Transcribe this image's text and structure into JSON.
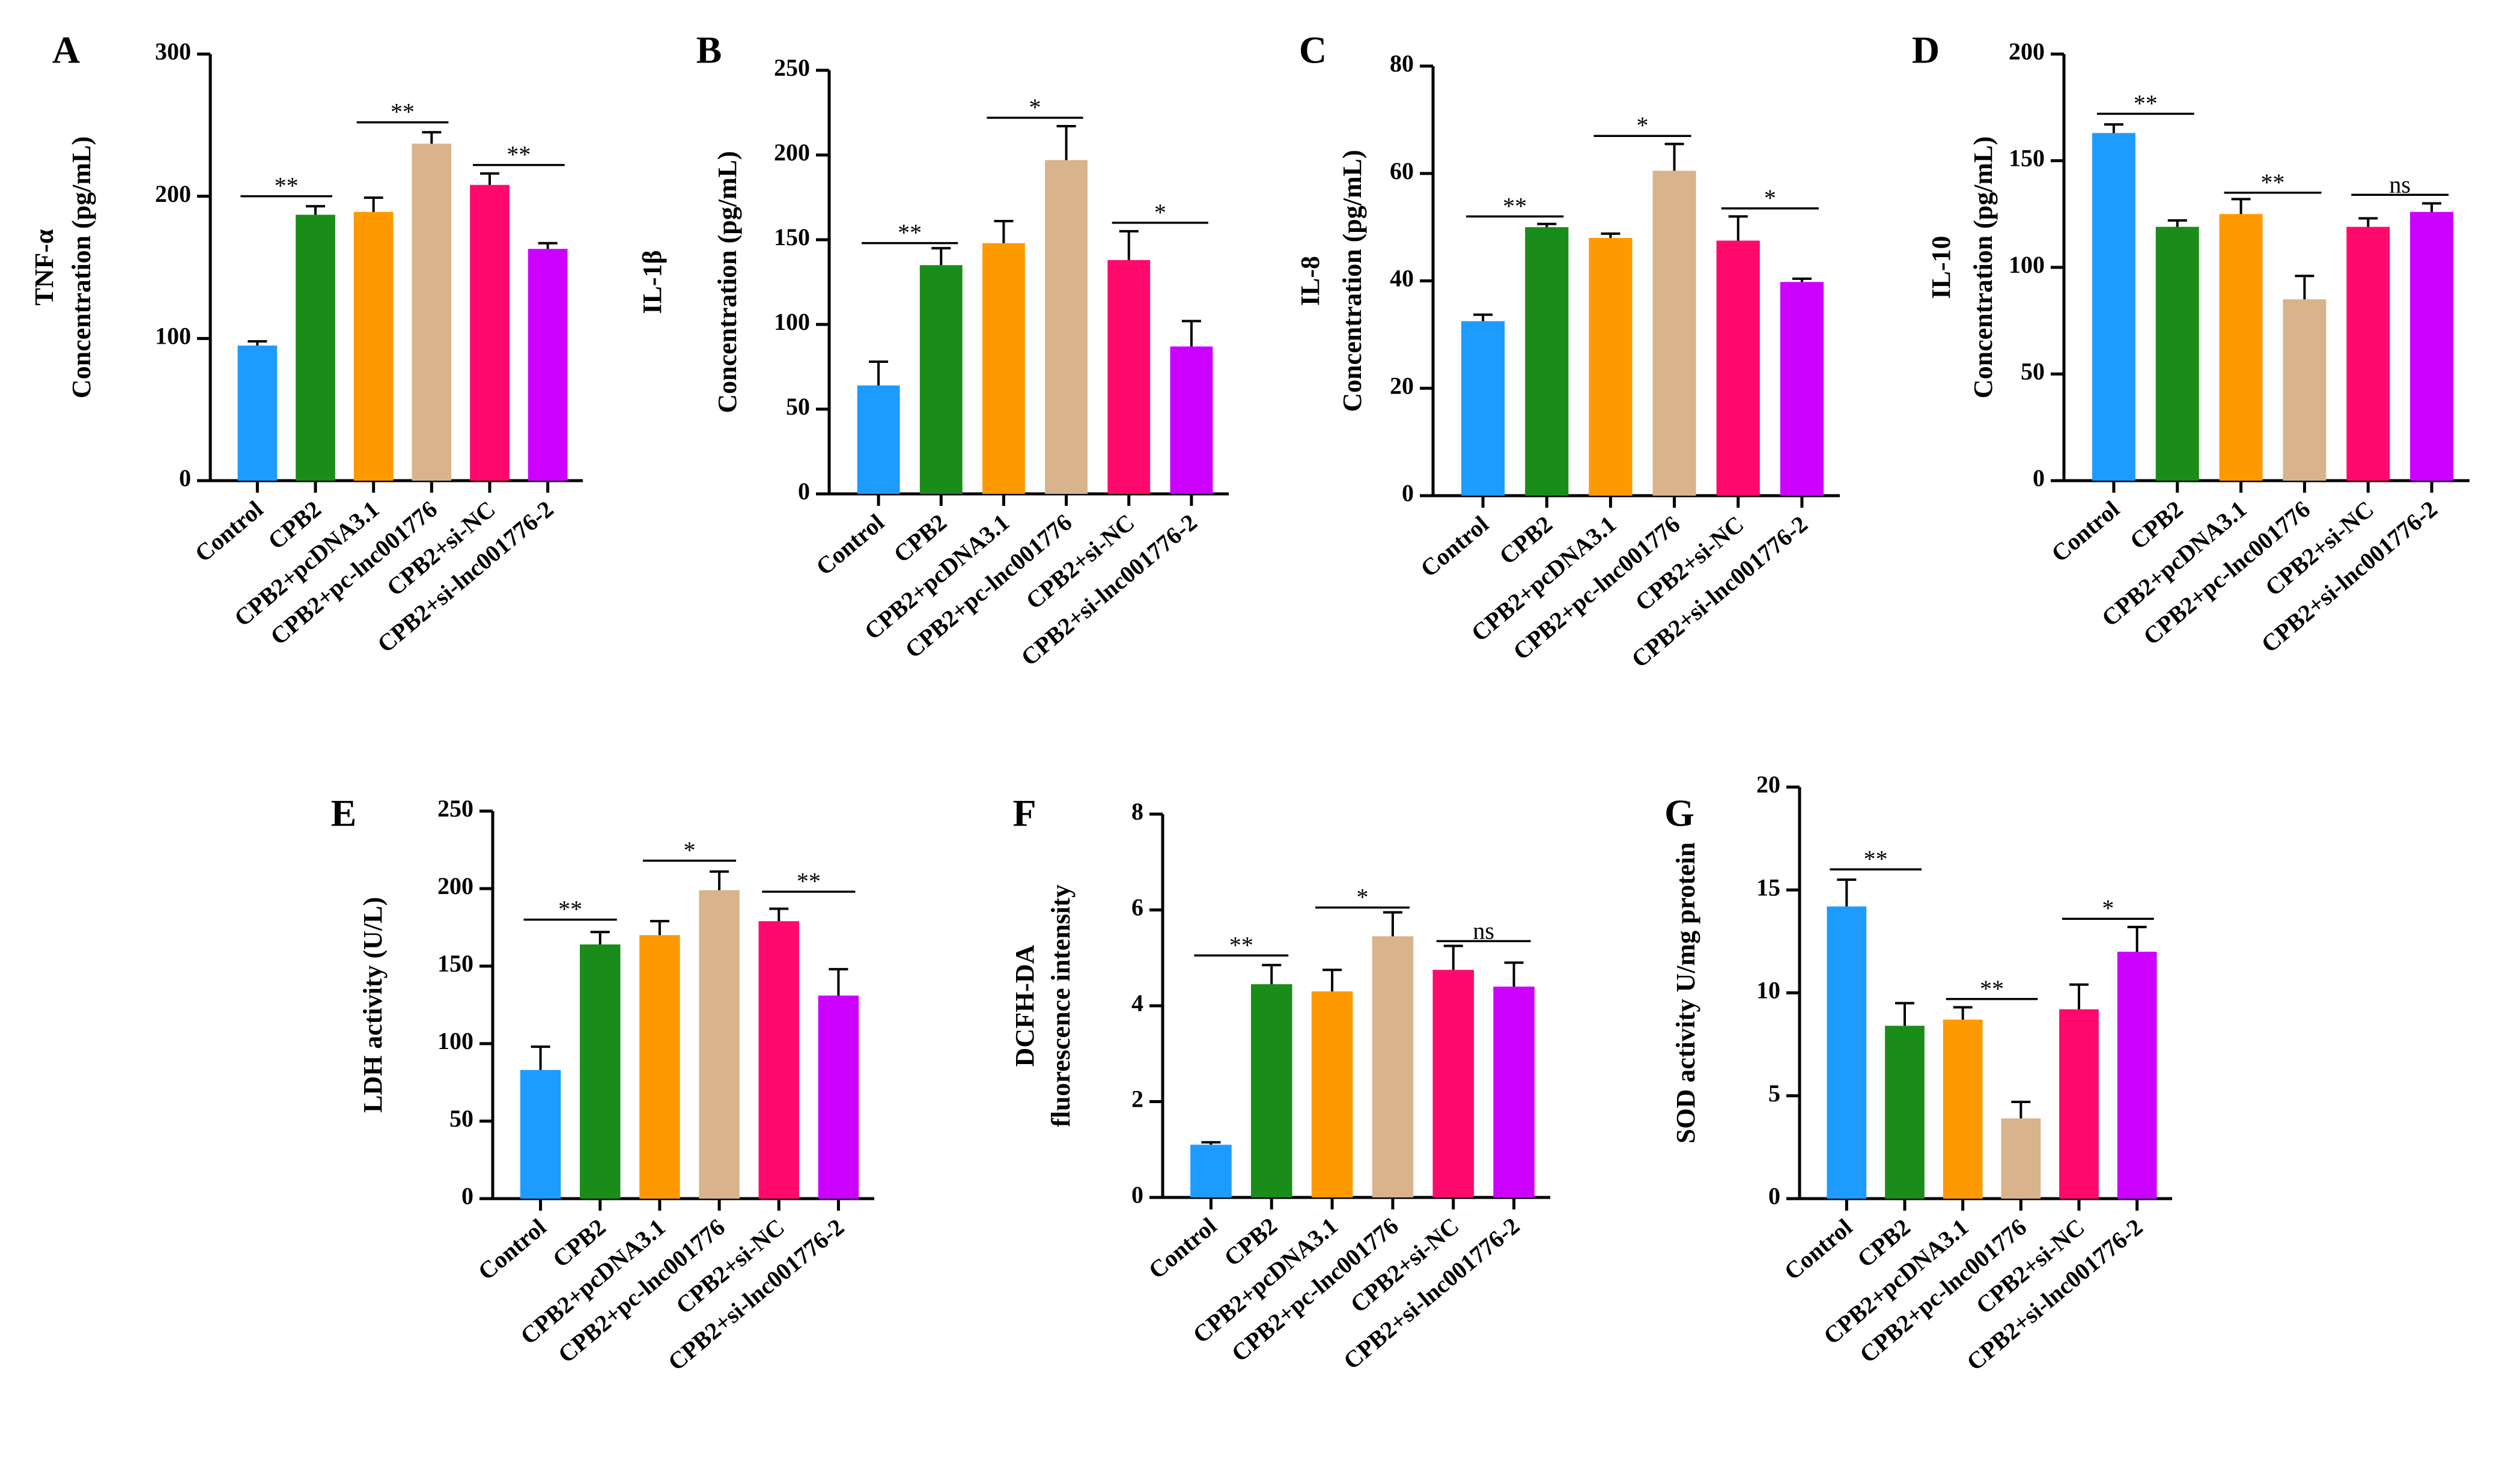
{
  "colors": [
    "#1e9bff",
    "#1a8c1a",
    "#ff9900",
    "#d9b38c",
    "#ff0a6c",
    "#cc00ff"
  ],
  "chart_data": [
    {
      "type": "bar",
      "panel": "A",
      "categories": [
        "Control",
        "CPB2",
        "CPB2+pcDNA3.1",
        "CPB2+pc-lnc001776",
        "CPB2+si-NC",
        "CPB2+si-lnc001776-2"
      ],
      "values": [
        95,
        187,
        189,
        237,
        208,
        163
      ],
      "errors": [
        3,
        6,
        10,
        8,
        8,
        4
      ],
      "ylabel": [
        "TNF-α",
        "Concentration (pg/mL)"
      ],
      "ylim": [
        0,
        300
      ],
      "yticks": [
        0,
        100,
        200,
        300
      ],
      "yticklabels": [
        "0",
        "100",
        "200",
        "300"
      ],
      "significance": [
        {
          "from": 0,
          "to": 1,
          "label": "**",
          "y": 200
        },
        {
          "from": 2,
          "to": 3,
          "label": "**",
          "y": 252
        },
        {
          "from": 4,
          "to": 5,
          "label": "**",
          "y": 222
        }
      ]
    },
    {
      "type": "bar",
      "panel": "B",
      "categories": [
        "Control",
        "CPB2",
        "CPB2+pcDNA3.1",
        "CPB2+pc-lnc001776",
        "CPB2+si-NC",
        "CPB2+si-lnc001776-2"
      ],
      "values": [
        64,
        135,
        148,
        197,
        138,
        87
      ],
      "errors": [
        14,
        10,
        13,
        20,
        17,
        15
      ],
      "ylabel": [
        "IL-1β",
        "Concentration (pg/mL)"
      ],
      "ylim": [
        0,
        250
      ],
      "yticks": [
        0,
        50,
        100,
        150,
        200,
        250
      ],
      "yticklabels": [
        "0",
        "50",
        "100",
        "150",
        "200",
        "250"
      ],
      "significance": [
        {
          "from": 0,
          "to": 1,
          "label": "**",
          "y": 148
        },
        {
          "from": 2,
          "to": 3,
          "label": "*",
          "y": 222
        },
        {
          "from": 4,
          "to": 5,
          "label": "*",
          "y": 160
        }
      ]
    },
    {
      "type": "bar",
      "panel": "C",
      "categories": [
        "Control",
        "CPB2",
        "CPB2+pcDNA3.1",
        "CPB2+pc-lnc001776",
        "CPB2+si-NC",
        "CPB2+si-lnc001776-2"
      ],
      "values": [
        32.5,
        50,
        48,
        60.5,
        47.5,
        39.8
      ],
      "errors": [
        1.2,
        0.6,
        0.8,
        5,
        4.5,
        0.6
      ],
      "ylabel": [
        "IL-8",
        "Concentration (pg/mL)"
      ],
      "ylim": [
        0,
        80
      ],
      "yticks": [
        0,
        20,
        40,
        60,
        80
      ],
      "yticklabels": [
        "0",
        "20",
        "40",
        "60",
        "80"
      ],
      "significance": [
        {
          "from": 0,
          "to": 1,
          "label": "**",
          "y": 52
        },
        {
          "from": 2,
          "to": 3,
          "label": "*",
          "y": 67
        },
        {
          "from": 4,
          "to": 5,
          "label": "*",
          "y": 53.5
        }
      ]
    },
    {
      "type": "bar",
      "panel": "D",
      "categories": [
        "Control",
        "CPB2",
        "CPB2+pcDNA3.1",
        "CPB2+pc-lnc001776",
        "CPB2+si-NC",
        "CPB2+si-lnc001776-2"
      ],
      "values": [
        163,
        119,
        125,
        85,
        119,
        126
      ],
      "errors": [
        4,
        3,
        7,
        11,
        4,
        4
      ],
      "ylabel": [
        "IL-10",
        "Concentration (pg/mL)"
      ],
      "ylim": [
        0,
        200
      ],
      "yticks": [
        0,
        50,
        100,
        150,
        200
      ],
      "yticklabels": [
        "0",
        "50",
        "100",
        "150",
        "200"
      ],
      "significance": [
        {
          "from": 0,
          "to": 1,
          "label": "**",
          "y": 172
        },
        {
          "from": 2,
          "to": 3,
          "label": "**",
          "y": 135
        },
        {
          "from": 4,
          "to": 5,
          "label": "ns",
          "y": 134
        }
      ]
    },
    {
      "type": "bar",
      "panel": "E",
      "categories": [
        "Control",
        "CPB2",
        "CPB2+pcDNA3.1",
        "CPB2+pc-lnc001776",
        "CPB2+si-NC",
        "CPB2+si-lnc001776-2"
      ],
      "values": [
        83,
        164,
        170,
        199,
        179,
        131
      ],
      "errors": [
        15,
        8,
        9,
        12,
        8,
        17
      ],
      "ylabel": [
        "",
        "LDH activity (U/L)"
      ],
      "ylim": [
        0,
        250
      ],
      "yticks": [
        0,
        50,
        100,
        150,
        200,
        250
      ],
      "yticklabels": [
        "0",
        "50",
        "100",
        "150",
        "200",
        "250"
      ],
      "significance": [
        {
          "from": 0,
          "to": 1,
          "label": "**",
          "y": 180
        },
        {
          "from": 2,
          "to": 3,
          "label": "*",
          "y": 218
        },
        {
          "from": 4,
          "to": 5,
          "label": "**",
          "y": 198
        }
      ]
    },
    {
      "type": "bar",
      "panel": "F",
      "categories": [
        "Control",
        "CPB2",
        "CPB2+pcDNA3.1",
        "CPB2+pc-lnc001776",
        "CPB2+si-NC",
        "CPB2+si-lnc001776-2"
      ],
      "values": [
        1.1,
        4.45,
        4.3,
        5.45,
        4.75,
        4.4
      ],
      "errors": [
        0.05,
        0.4,
        0.45,
        0.5,
        0.5,
        0.5
      ],
      "ylabel": [
        "DCFH-DA",
        "fluorescence intensity"
      ],
      "ylim": [
        0,
        8
      ],
      "yticks": [
        0,
        2,
        4,
        6,
        8
      ],
      "yticklabels": [
        "0",
        "2",
        "4",
        "6",
        "8"
      ],
      "significance": [
        {
          "from": 0,
          "to": 1,
          "label": "**",
          "y": 5.05
        },
        {
          "from": 2,
          "to": 3,
          "label": "*",
          "y": 6.05
        },
        {
          "from": 4,
          "to": 5,
          "label": "ns",
          "y": 5.35
        }
      ]
    },
    {
      "type": "bar",
      "panel": "G",
      "categories": [
        "Control",
        "CPB2",
        "CPB2+pcDNA3.1",
        "CPB2+pc-lnc001776",
        "CPB2+si-NC",
        "CPB2+si-lnc001776-2"
      ],
      "values": [
        14.2,
        8.4,
        8.7,
        3.9,
        9.2,
        12.0
      ],
      "errors": [
        1.3,
        1.1,
        0.6,
        0.8,
        1.2,
        1.2
      ],
      "ylabel": [
        "",
        "SOD activity U/mg protein"
      ],
      "ylim": [
        0,
        20
      ],
      "yticks": [
        0,
        5,
        10,
        15,
        20
      ],
      "yticklabels": [
        "0",
        "5",
        "10",
        "15",
        "20"
      ],
      "significance": [
        {
          "from": 0,
          "to": 1,
          "label": "**",
          "y": 16
        },
        {
          "from": 2,
          "to": 3,
          "label": "**",
          "y": 9.7
        },
        {
          "from": 4,
          "to": 5,
          "label": "*",
          "y": 13.6
        }
      ]
    }
  ]
}
